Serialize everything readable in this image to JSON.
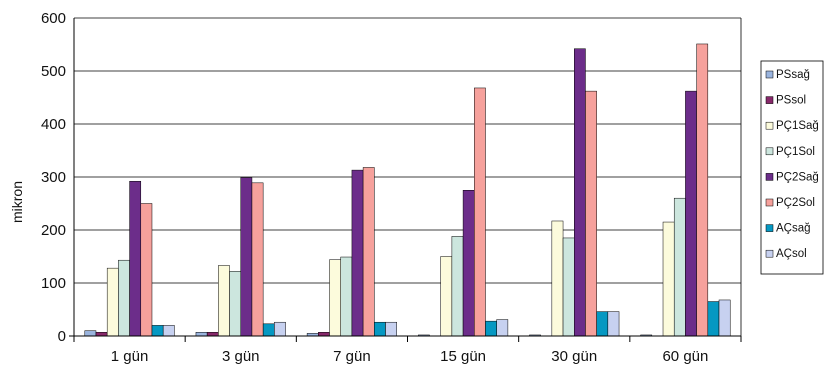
{
  "chart_data": {
    "type": "bar",
    "title": "",
    "xlabel": "",
    "ylabel": "mikron",
    "ylim": [
      0,
      600
    ],
    "yticks": [
      0,
      100,
      200,
      300,
      400,
      500,
      600
    ],
    "grid": true,
    "legend_position": "right",
    "categories": [
      "1 gün",
      "3 gün",
      "7 gün",
      "15 gün",
      "30 gün",
      "60 gün"
    ],
    "series": [
      {
        "name": "PSsağ",
        "color": "#9ab4de",
        "values": [
          10,
          7,
          5,
          2,
          2,
          2
        ]
      },
      {
        "name": "PSsol",
        "color": "#87286a",
        "values": [
          7,
          7,
          7,
          0,
          0,
          0
        ]
      },
      {
        "name": "PÇ1Sağ",
        "color": "#fcfbdc",
        "values": [
          128,
          133,
          144,
          150,
          217,
          215
        ]
      },
      {
        "name": "PÇ1Sol",
        "color": "#cce6de",
        "values": [
          143,
          122,
          149,
          188,
          185,
          260
        ]
      },
      {
        "name": "PÇ2Sağ",
        "color": "#6c2d8a",
        "values": [
          292,
          299,
          313,
          275,
          542,
          462
        ]
      },
      {
        "name": "PÇ2Sol",
        "color": "#f6a19c",
        "values": [
          250,
          289,
          318,
          468,
          462,
          551
        ]
      },
      {
        "name": "AÇsağ",
        "color": "#0598c2",
        "values": [
          20,
          23,
          26,
          28,
          46,
          65
        ]
      },
      {
        "name": "AÇsol",
        "color": "#c7d1f0",
        "values": [
          20,
          26,
          26,
          31,
          46,
          68
        ]
      }
    ]
  }
}
